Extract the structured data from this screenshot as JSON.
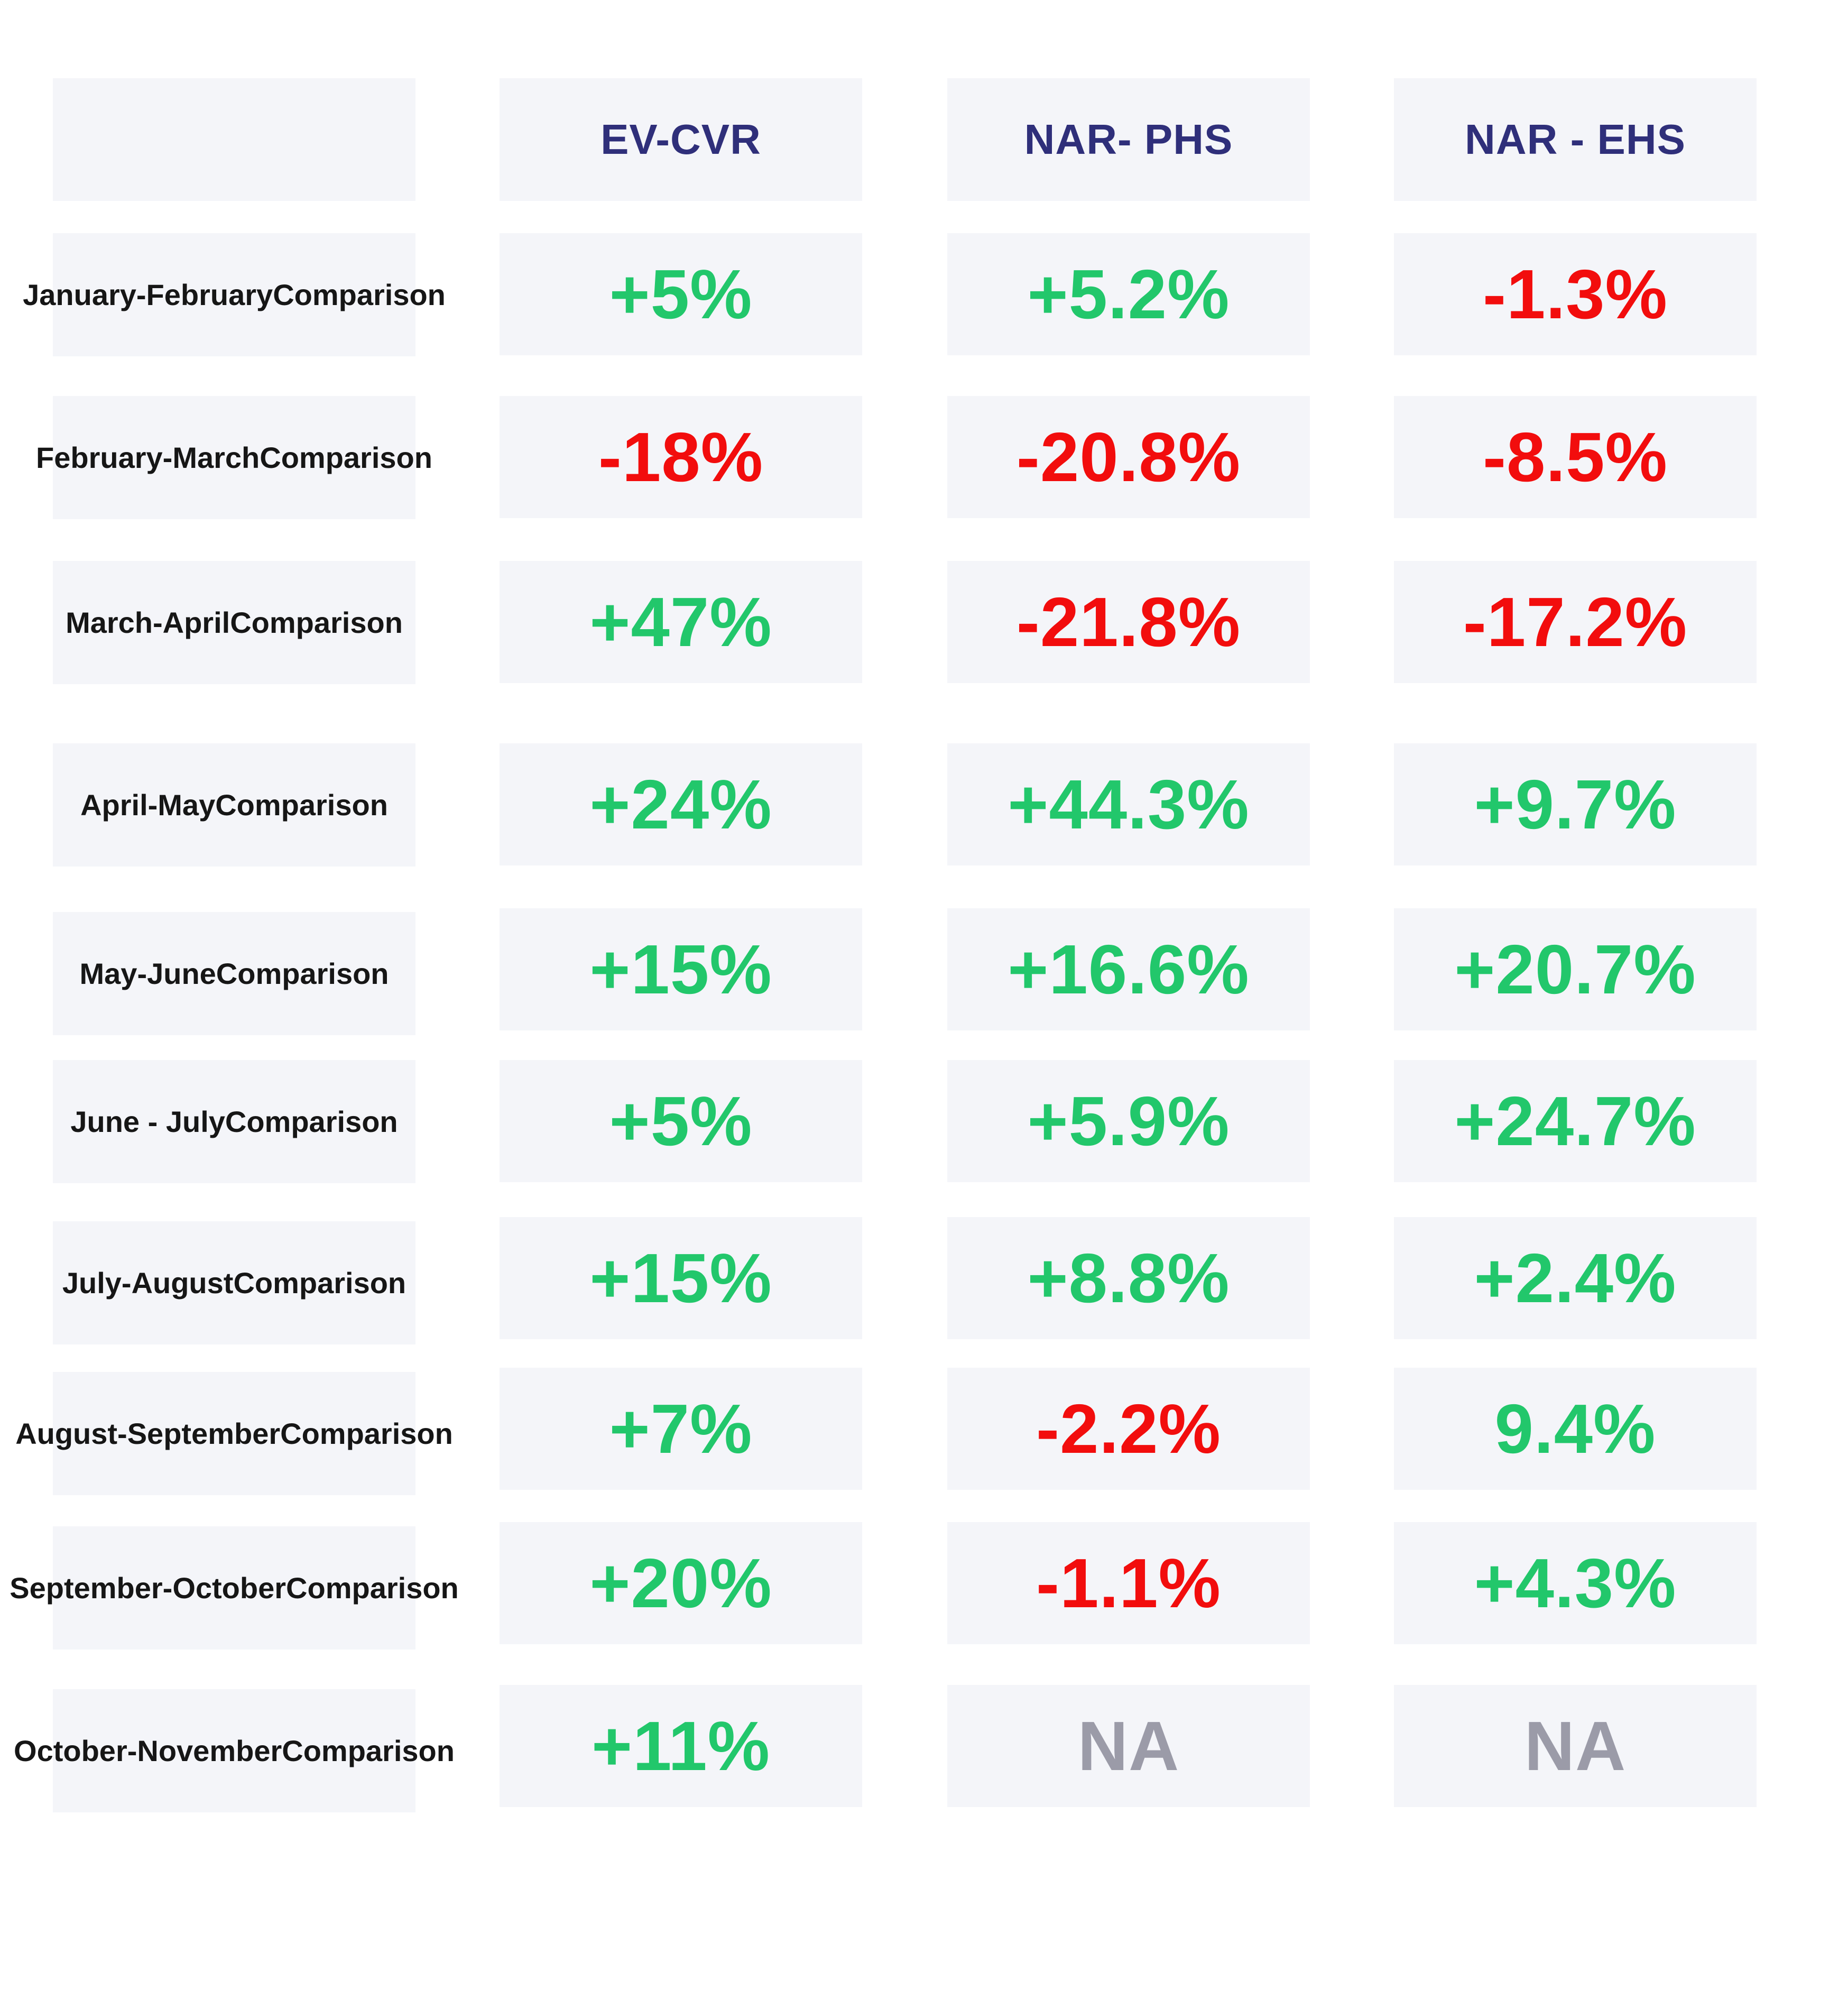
{
  "colors": {
    "positive": "#22c76b",
    "negative": "#f20d0d",
    "na": "#9b9ba8",
    "header_text": "#2f2f7a",
    "cell_background": "#f4f5f9"
  },
  "chart_data": {
    "type": "table",
    "columns": [
      "",
      "EV-CVR",
      "NAR- PHS",
      "NAR - EHS"
    ],
    "rows": [
      {
        "label": [
          "January-February",
          "Comparison"
        ],
        "values": [
          "+5%",
          "+5.2%",
          "-1.3%"
        ],
        "status": [
          "positive",
          "positive",
          "negative"
        ]
      },
      {
        "label": [
          "February-March",
          "Comparison"
        ],
        "values": [
          "-18%",
          "-20.8%",
          "-8.5%"
        ],
        "status": [
          "negative",
          "negative",
          "negative"
        ]
      },
      {
        "label": [
          "March-April",
          "Comparison"
        ],
        "values": [
          "+47%",
          "-21.8%",
          "-17.2%"
        ],
        "status": [
          "positive",
          "negative",
          "negative"
        ]
      },
      {
        "label": [
          "April-May",
          "Comparison"
        ],
        "values": [
          "+24%",
          "+44.3%",
          "+9.7%"
        ],
        "status": [
          "positive",
          "positive",
          "positive"
        ]
      },
      {
        "label": [
          "May-June",
          "Comparison"
        ],
        "values": [
          "+15%",
          "+16.6%",
          "+20.7%"
        ],
        "status": [
          "positive",
          "positive",
          "positive"
        ]
      },
      {
        "label": [
          "June - July",
          "Comparison"
        ],
        "values": [
          "+5%",
          "+5.9%",
          "+24.7%"
        ],
        "status": [
          "positive",
          "positive",
          "positive"
        ]
      },
      {
        "label": [
          "July-August",
          "Comparison"
        ],
        "values": [
          "+15%",
          "+8.8%",
          "+2.4%"
        ],
        "status": [
          "positive",
          "positive",
          "positive"
        ]
      },
      {
        "label": [
          "August-September",
          "Comparison"
        ],
        "values": [
          "+7%",
          "-2.2%",
          "9.4%"
        ],
        "status": [
          "positive",
          "negative",
          "positive"
        ]
      },
      {
        "label": [
          "September-October",
          "Comparison"
        ],
        "values": [
          "+20%",
          "-1.1%",
          "+4.3%"
        ],
        "status": [
          "positive",
          "negative",
          "positive"
        ]
      },
      {
        "label": [
          "October-November",
          "Comparison"
        ],
        "values": [
          "+11%",
          "NA",
          "NA"
        ],
        "status": [
          "positive",
          "na",
          "na"
        ]
      }
    ]
  }
}
